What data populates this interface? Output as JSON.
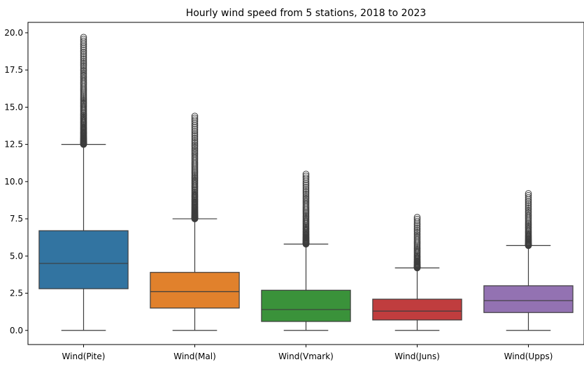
{
  "chart_data": {
    "type": "box",
    "title": "Hourly wind speed from 5 stations, 2018 to 2023",
    "xlabel": "",
    "ylabel": "",
    "ylim": [
      -0.95,
      20.7
    ],
    "yticks": [
      "0.0",
      "2.5",
      "5.0",
      "7.5",
      "10.0",
      "12.5",
      "15.0",
      "17.5",
      "20.0"
    ],
    "grid": false,
    "categories": [
      "Wind(Pite)",
      "Wind(Mal)",
      "Wind(Vmark)",
      "Wind(Juns)",
      "Wind(Upps)"
    ],
    "series": [
      {
        "category": "Wind(Pite)",
        "color": "#3274a1",
        "min": 0.0,
        "q1": 2.8,
        "median": 4.5,
        "q3": 6.7,
        "whisker_high": 12.5,
        "outliers_from": 12.5,
        "outliers_to": 19.7
      },
      {
        "category": "Wind(Mal)",
        "color": "#e1812c",
        "min": 0.0,
        "q1": 1.5,
        "median": 2.6,
        "q3": 3.9,
        "whisker_high": 7.5,
        "outliers_from": 7.5,
        "outliers_to": 14.4
      },
      {
        "category": "Wind(Vmark)",
        "color": "#3a923a",
        "min": 0.0,
        "q1": 0.6,
        "median": 1.4,
        "q3": 2.7,
        "whisker_high": 5.8,
        "outliers_from": 5.8,
        "outliers_to": 10.5
      },
      {
        "category": "Wind(Juns)",
        "color": "#c03d3e",
        "min": 0.0,
        "q1": 0.7,
        "median": 1.3,
        "q3": 2.1,
        "whisker_high": 4.2,
        "outliers_from": 4.2,
        "outliers_to": 7.6
      },
      {
        "category": "Wind(Upps)",
        "color": "#9372b2",
        "min": 0.0,
        "q1": 1.2,
        "median": 2.0,
        "q3": 3.0,
        "whisker_high": 5.7,
        "outliers_from": 5.7,
        "outliers_to": 9.2
      }
    ]
  }
}
